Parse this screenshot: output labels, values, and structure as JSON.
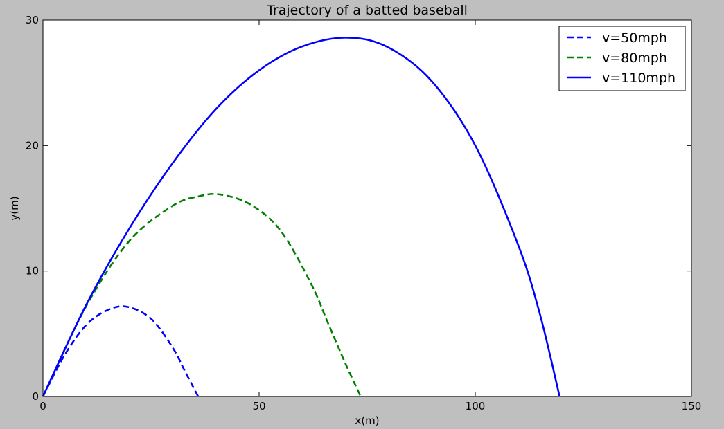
{
  "chart_data": {
    "type": "line",
    "title": "Trajectory of a batted baseball",
    "xlabel": "x(m)",
    "ylabel": "y(m)",
    "xlim": [
      0,
      150
    ],
    "ylim": [
      0,
      30
    ],
    "xticks": [
      0,
      50,
      100,
      150
    ],
    "yticks": [
      0,
      10,
      20,
      30
    ],
    "grid": false,
    "legend_position": "top-right",
    "series": [
      {
        "name": "v=50mph",
        "color": "#0000ff",
        "style": "dashed",
        "x": [
          0,
          5,
          10,
          15,
          19.5,
          25,
          30,
          33,
          35.9
        ],
        "y": [
          0,
          3.3,
          5.7,
          6.9,
          7.15,
          6.2,
          3.9,
          1.9,
          0
        ]
      },
      {
        "name": "v=80mph",
        "color": "#008000",
        "style": "dashed",
        "x": [
          0,
          10,
          20,
          30,
          36,
          41,
          48,
          55,
          62,
          66,
          70,
          73.5
        ],
        "y": [
          0,
          7.2,
          12.4,
          15.2,
          15.95,
          16.1,
          15.3,
          13.2,
          9.0,
          5.8,
          2.6,
          0
        ]
      },
      {
        "name": "v=110mph",
        "color": "#0000ff",
        "style": "solid",
        "x": [
          0,
          10,
          20,
          30,
          40,
          50,
          60,
          70.5,
          80,
          90,
          100,
          110,
          115,
          119.5
        ],
        "y": [
          0,
          7.3,
          13.4,
          18.6,
          22.9,
          26.0,
          27.9,
          28.6,
          27.8,
          25.1,
          20.0,
          12.0,
          6.5,
          0
        ]
      }
    ]
  }
}
